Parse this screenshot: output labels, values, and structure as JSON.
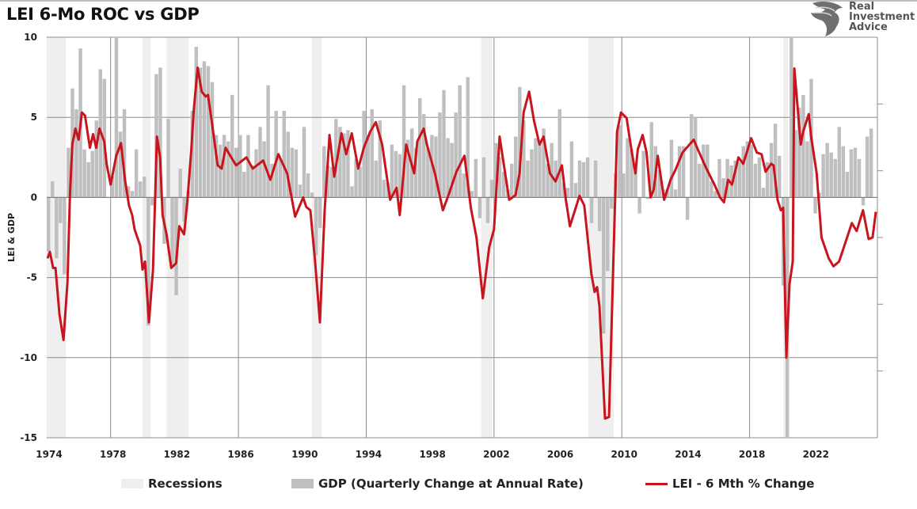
{
  "title": "LEI 6-Mo ROC vs GDP",
  "logo": {
    "line1": "Real",
    "line2": "Investment",
    "line3": "Advice"
  },
  "colors": {
    "recession": "#efefef",
    "gdp": "#bfbfbf",
    "lei": "#c8141c",
    "grid": "#8c8c8c"
  },
  "chart_data": {
    "type": "bar+line",
    "title": "LEI 6-Mo ROC vs GDP",
    "ylabel": "LEI & GDP",
    "xlabel": "",
    "ylim": [
      -15,
      10
    ],
    "xlim": [
      1974,
      2026
    ],
    "yticks": [
      "10",
      "5",
      "0",
      "-5",
      "-10",
      "-15"
    ],
    "ytick_values": [
      10,
      5,
      0,
      -5,
      -10,
      -15
    ],
    "xticks": [
      "1974",
      "1978",
      "1982",
      "1986",
      "1990",
      "1994",
      "1998",
      "2002",
      "2006",
      "2010",
      "2014",
      "2018",
      "2022"
    ],
    "xtick_values": [
      1974,
      1978,
      1982,
      1986,
      1990,
      1994,
      1998,
      2002,
      2006,
      2010,
      2014,
      2018,
      2022
    ],
    "vgrid_years": [
      1978,
      1986,
      1994,
      2002,
      2010,
      2018,
      2026
    ],
    "grid": true,
    "secondary_axis": "right, unlabeled ticks",
    "legend_position": "bottom",
    "legend": [
      "Recessions",
      "GDP (Quarterly Change at Annual Rate)",
      "LEI - 6 Mth % Change"
    ],
    "recessions": [
      [
        1973.9,
        1975.2
      ],
      [
        1980.0,
        1980.5
      ],
      [
        1981.5,
        1982.9
      ],
      [
        1990.6,
        1991.2
      ],
      [
        2001.2,
        2001.9
      ],
      [
        2007.9,
        2009.5
      ],
      [
        2020.1,
        2020.4
      ]
    ],
    "gdp": {
      "name": "GDP (Quarterly Change at Annual Rate)",
      "start_year": 1974,
      "frequency": "quarterly",
      "values": [
        -3.4,
        1.0,
        -3.8,
        -1.6,
        -4.8,
        3.1,
        6.8,
        5.5,
        9.3,
        3.0,
        2.2,
        2.9,
        4.8,
        8.0,
        7.4,
        0.0,
        1.3,
        16.4,
        4.1,
        5.5,
        0.7,
        0.4,
        3.0,
        1.0,
        1.3,
        -8.0,
        -0.5,
        7.7,
        8.1,
        -2.9,
        4.9,
        -4.3,
        -6.1,
        1.8,
        -1.5,
        0.4,
        5.4,
        9.4,
        8.1,
        8.5,
        8.2,
        7.2,
        3.9,
        3.3,
        3.9,
        3.5,
        6.4,
        3.1,
        3.9,
        1.6,
        3.9,
        2.0,
        3.0,
        4.4,
        3.5,
        7.0,
        2.1,
        5.4,
        2.4,
        5.4,
        4.1,
        3.1,
        3.0,
        0.8,
        4.4,
        1.5,
        0.3,
        -3.6,
        -1.9,
        3.2,
        2.0,
        1.9,
        4.9,
        4.4,
        4.0,
        4.2,
        0.7,
        2.4,
        1.9,
        5.4,
        3.9,
        5.5,
        2.3,
        4.8,
        1.1,
        0.9,
        3.3,
        2.9,
        2.7,
        7.0,
        3.6,
        4.3,
        3.1,
        6.2,
        5.2,
        3.1,
        3.9,
        3.8,
        5.3,
        6.7,
        3.7,
        3.4,
        5.3,
        7.0,
        1.5,
        7.5,
        0.4,
        2.4,
        -1.3,
        2.5,
        -1.6,
        1.1,
        3.4,
        2.5,
        1.6,
        0.5,
        2.1,
        3.8,
        6.9,
        4.8,
        2.3,
        3.0,
        3.7,
        3.5,
        4.3,
        2.1,
        3.4,
        2.3,
        5.5,
        0.9,
        0.6,
        3.5,
        0.9,
        2.3,
        2.2,
        2.5,
        -1.6,
        2.3,
        -2.1,
        -8.5,
        -4.6,
        -0.7,
        1.5,
        4.5,
        1.5,
        3.7,
        3.0,
        2.0,
        -1.0,
        2.9,
        -0.1,
        4.7,
        3.2,
        1.7,
        0.5,
        0.5,
        3.6,
        0.5,
        3.2,
        3.2,
        -1.4,
        5.2,
        5.0,
        2.1,
        3.3,
        3.3,
        1.0,
        0.4,
        2.4,
        1.2,
        2.4,
        2.0,
        2.3,
        2.2,
        3.2,
        3.5,
        3.3,
        2.1,
        2.5,
        0.6,
        2.2,
        3.4,
        4.6,
        2.6,
        -5.5,
        -28.0,
        35.0,
        4.2,
        5.6,
        6.4,
        3.5,
        7.4,
        -1.0,
        0.3,
        2.7,
        3.4,
        2.8,
        2.4,
        4.4,
        3.2,
        1.6,
        3.0,
        3.1,
        2.4,
        -0.5,
        3.8,
        4.3
      ]
    },
    "lei": {
      "name": "LEI - 6 Mth % Change",
      "points": [
        [
          1974.05,
          -3.8
        ],
        [
          1974.2,
          -3.4
        ],
        [
          1974.4,
          -4.4
        ],
        [
          1974.55,
          -4.4
        ],
        [
          1974.8,
          -7.3
        ],
        [
          1975.05,
          -8.9
        ],
        [
          1975.3,
          -5.3
        ],
        [
          1975.45,
          0.1
        ],
        [
          1975.6,
          3.3
        ],
        [
          1975.8,
          4.3
        ],
        [
          1976.0,
          3.6
        ],
        [
          1976.2,
          5.3
        ],
        [
          1976.4,
          5.1
        ],
        [
          1976.7,
          3.1
        ],
        [
          1976.9,
          3.95
        ],
        [
          1977.1,
          3.1
        ],
        [
          1977.3,
          4.3
        ],
        [
          1977.6,
          3.5
        ],
        [
          1977.75,
          2.1
        ],
        [
          1978.0,
          0.8
        ],
        [
          1978.35,
          2.6
        ],
        [
          1978.65,
          3.4
        ],
        [
          1978.9,
          1.1
        ],
        [
          1979.15,
          -0.5
        ],
        [
          1979.35,
          -1.1
        ],
        [
          1979.5,
          -2.0
        ],
        [
          1979.85,
          -3.0
        ],
        [
          1980.0,
          -4.5
        ],
        [
          1980.15,
          -4.0
        ],
        [
          1980.4,
          -7.8
        ],
        [
          1980.65,
          -4.5
        ],
        [
          1980.9,
          3.8
        ],
        [
          1981.1,
          2.5
        ],
        [
          1981.25,
          -1.1
        ],
        [
          1981.5,
          -2.3
        ],
        [
          1981.8,
          -4.4
        ],
        [
          1982.1,
          -4.1
        ],
        [
          1982.3,
          -1.8
        ],
        [
          1982.6,
          -2.3
        ],
        [
          1982.8,
          -0.3
        ],
        [
          1983.05,
          3.0
        ],
        [
          1983.2,
          5.4
        ],
        [
          1983.45,
          8.1
        ],
        [
          1983.7,
          6.6
        ],
        [
          1983.95,
          6.3
        ],
        [
          1984.1,
          6.4
        ],
        [
          1984.35,
          4.6
        ],
        [
          1984.7,
          2.0
        ],
        [
          1984.95,
          1.8
        ],
        [
          1985.2,
          3.1
        ],
        [
          1985.55,
          2.5
        ],
        [
          1985.85,
          2.0
        ],
        [
          1986.5,
          2.5
        ],
        [
          1986.9,
          1.8
        ],
        [
          1987.55,
          2.3
        ],
        [
          1988.0,
          1.1
        ],
        [
          1988.5,
          2.7
        ],
        [
          1989.05,
          1.5
        ],
        [
          1989.55,
          -1.2
        ],
        [
          1990.05,
          0.0
        ],
        [
          1990.25,
          -0.6
        ],
        [
          1990.5,
          -0.8
        ],
        [
          1990.8,
          -4.0
        ],
        [
          1991.1,
          -7.8
        ],
        [
          1991.4,
          -0.8
        ],
        [
          1991.7,
          3.9
        ],
        [
          1992.0,
          1.3
        ],
        [
          1992.45,
          4.0
        ],
        [
          1992.75,
          2.7
        ],
        [
          1993.1,
          4.0
        ],
        [
          1993.5,
          1.8
        ],
        [
          1993.85,
          3.1
        ],
        [
          1994.25,
          4.1
        ],
        [
          1994.6,
          4.7
        ],
        [
          1995.0,
          3.3
        ],
        [
          1995.5,
          -0.15
        ],
        [
          1995.9,
          0.6
        ],
        [
          1996.1,
          -1.1
        ],
        [
          1996.5,
          3.3
        ],
        [
          1997.0,
          1.5
        ],
        [
          1997.2,
          3.5
        ],
        [
          1997.6,
          4.3
        ],
        [
          1997.8,
          3.3
        ],
        [
          1998.3,
          1.5
        ],
        [
          1998.8,
          -0.8
        ],
        [
          1999.15,
          0.15
        ],
        [
          1999.65,
          1.6
        ],
        [
          2000.15,
          2.6
        ],
        [
          2000.55,
          -0.65
        ],
        [
          2000.9,
          -2.5
        ],
        [
          2001.3,
          -6.3
        ],
        [
          2001.7,
          -3.1
        ],
        [
          2002.0,
          -2.0
        ],
        [
          2002.35,
          3.8
        ],
        [
          2002.65,
          1.8
        ],
        [
          2002.95,
          -0.15
        ],
        [
          2003.35,
          0.15
        ],
        [
          2003.6,
          1.5
        ],
        [
          2003.85,
          5.3
        ],
        [
          2004.2,
          6.6
        ],
        [
          2004.5,
          4.8
        ],
        [
          2004.85,
          3.3
        ],
        [
          2005.1,
          3.8
        ],
        [
          2005.5,
          1.5
        ],
        [
          2005.85,
          1.0
        ],
        [
          2006.25,
          2.0
        ],
        [
          2006.5,
          -0.15
        ],
        [
          2006.75,
          -1.8
        ],
        [
          2007.35,
          0.1
        ],
        [
          2007.65,
          -0.5
        ],
        [
          2008.1,
          -4.8
        ],
        [
          2008.3,
          -5.9
        ],
        [
          2008.45,
          -5.6
        ],
        [
          2008.6,
          -6.8
        ],
        [
          2008.95,
          -13.8
        ],
        [
          2009.2,
          -13.7
        ],
        [
          2009.55,
          -1.1
        ],
        [
          2009.7,
          4.1
        ],
        [
          2009.95,
          5.3
        ],
        [
          2010.3,
          4.95
        ],
        [
          2010.6,
          3.0
        ],
        [
          2010.85,
          1.5
        ],
        [
          2011.0,
          3.0
        ],
        [
          2011.3,
          3.9
        ],
        [
          2011.55,
          2.8
        ],
        [
          2011.8,
          0.0
        ],
        [
          2012.0,
          0.5
        ],
        [
          2012.25,
          2.6
        ],
        [
          2012.65,
          -0.15
        ],
        [
          2013.05,
          1.1
        ],
        [
          2013.35,
          1.7
        ],
        [
          2013.8,
          2.8
        ],
        [
          2014.5,
          3.6
        ],
        [
          2014.8,
          2.9
        ],
        [
          2015.3,
          1.8
        ],
        [
          2015.8,
          0.8
        ],
        [
          2016.15,
          0.0
        ],
        [
          2016.4,
          -0.3
        ],
        [
          2016.65,
          1.1
        ],
        [
          2016.9,
          0.8
        ],
        [
          2017.3,
          2.5
        ],
        [
          2017.6,
          2.1
        ],
        [
          2018.1,
          3.7
        ],
        [
          2018.45,
          2.8
        ],
        [
          2018.75,
          2.7
        ],
        [
          2019.0,
          1.6
        ],
        [
          2019.35,
          2.1
        ],
        [
          2019.5,
          2.0
        ],
        [
          2019.75,
          -0.15
        ],
        [
          2019.95,
          -0.8
        ],
        [
          2020.1,
          -0.65
        ],
        [
          2020.3,
          -10.0
        ],
        [
          2020.5,
          -5.4
        ],
        [
          2020.7,
          -4.0
        ],
        [
          2020.8,
          8.05
        ],
        [
          2021.2,
          3.3
        ],
        [
          2021.35,
          4.1
        ],
        [
          2021.7,
          5.2
        ],
        [
          2021.85,
          3.8
        ],
        [
          2022.2,
          1.5
        ],
        [
          2022.5,
          -2.5
        ],
        [
          2022.95,
          -3.8
        ],
        [
          2023.25,
          -4.3
        ],
        [
          2023.6,
          -4.0
        ],
        [
          2024.0,
          -2.8
        ],
        [
          2024.4,
          -1.6
        ],
        [
          2024.7,
          -2.1
        ],
        [
          2025.1,
          -0.8
        ],
        [
          2025.45,
          -2.6
        ],
        [
          2025.7,
          -2.5
        ],
        [
          2025.9,
          -0.9
        ]
      ]
    }
  }
}
